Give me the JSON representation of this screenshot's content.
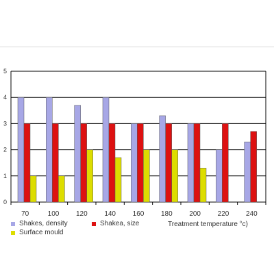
{
  "chart_data": {
    "type": "bar",
    "categories": [
      "70",
      "100",
      "120",
      "140",
      "160",
      "180",
      "200",
      "220",
      "240"
    ],
    "series": [
      {
        "name": "Shakes, density",
        "color": "#a7a7e6",
        "values": [
          4,
          4,
          3.7,
          4,
          3,
          3.3,
          3,
          2,
          2.3
        ]
      },
      {
        "name": "Shakea, size",
        "color": "#dd1111",
        "values": [
          3,
          3,
          3,
          3,
          3,
          3,
          3,
          3,
          2.7
        ]
      },
      {
        "name": "Surface mould",
        "color": "#dddd00",
        "values": [
          1,
          1,
          2,
          1.7,
          2,
          2,
          1.3,
          null,
          null
        ]
      }
    ],
    "yticks": [
      "0",
      "1",
      "2",
      "3",
      "4",
      "5"
    ],
    "ylim": [
      0,
      5
    ],
    "grid": true,
    "xlabel": "Treatment temperature °c)",
    "ylabel": "",
    "title": "",
    "legend_position": "bottom"
  }
}
